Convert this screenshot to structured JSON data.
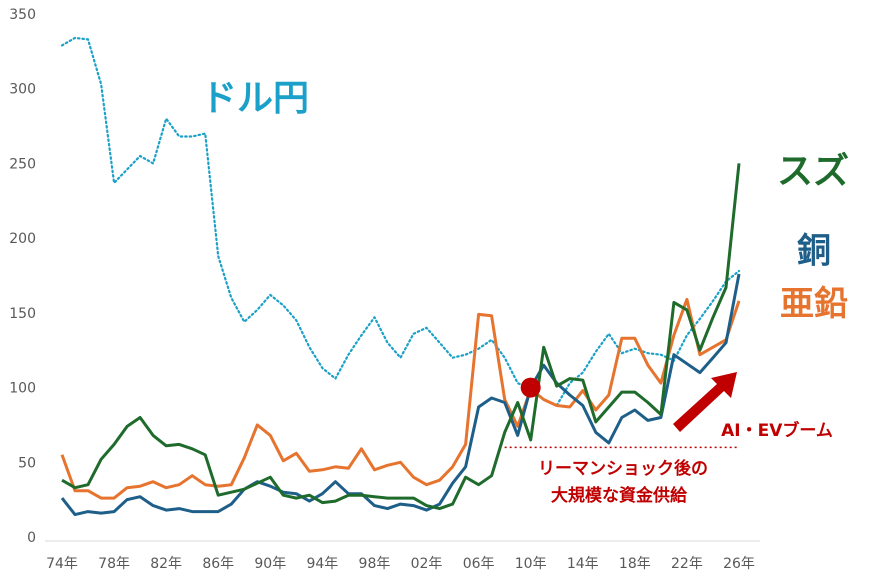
{
  "chart_data": {
    "type": "line",
    "ylim": [
      0,
      350
    ],
    "y_ticks": [
      0,
      50,
      100,
      150,
      200,
      250,
      300,
      350
    ],
    "x_start": 1974,
    "x_end": 2026,
    "x_tick_years": [
      1974,
      1978,
      1982,
      1986,
      1990,
      1994,
      1998,
      2002,
      2006,
      2010,
      2014,
      2018,
      2022,
      2026
    ],
    "x_tick_labels": [
      "74年",
      "78年",
      "82年",
      "86年",
      "90年",
      "94年",
      "98年",
      "02年",
      "06年",
      "10年",
      "14年",
      "18年",
      "22年",
      "26年"
    ],
    "grid": false,
    "series": [
      {
        "name": "ドル円",
        "color": "#1ba1c9",
        "style": "dotted",
        "x": [
          1974,
          1975,
          1976,
          1977,
          1978,
          1979,
          1980,
          1981,
          1982,
          1983,
          1984,
          1985,
          1986,
          1987,
          1988,
          1989,
          1990,
          1991,
          1992,
          1993,
          1994,
          1995,
          1996,
          1997,
          1998,
          1999,
          2000,
          2001,
          2002,
          2003,
          2004,
          2005,
          2006,
          2007,
          2008,
          2009,
          2010,
          2011,
          2012,
          2013,
          2014,
          2015,
          2016,
          2017,
          2018,
          2019,
          2020,
          2021,
          2022,
          2023,
          2024,
          2025,
          2026
        ],
        "values": [
          329,
          334,
          333,
          303,
          237,
          246,
          255,
          250,
          280,
          268,
          268,
          270,
          188,
          160,
          144,
          152,
          162,
          155,
          145,
          127,
          113,
          106,
          122,
          135,
          147,
          130,
          120,
          136,
          140,
          130,
          120,
          122,
          126,
          132,
          120,
          103,
          99,
          92,
          88,
          103,
          110,
          124,
          136,
          123,
          126,
          123,
          122,
          118,
          135,
          146,
          158,
          171,
          178
        ]
      },
      {
        "name": "スズ",
        "color": "#1e6b2c",
        "style": "solid",
        "x": [
          1974,
          1975,
          1976,
          1977,
          1978,
          1979,
          1980,
          1981,
          1982,
          1983,
          1984,
          1985,
          1986,
          1987,
          1988,
          1989,
          1990,
          1991,
          1992,
          1993,
          1994,
          1995,
          1996,
          1997,
          1998,
          1999,
          2000,
          2001,
          2002,
          2003,
          2004,
          2005,
          2006,
          2007,
          2008,
          2009,
          2010,
          2011,
          2012,
          2013,
          2014,
          2015,
          2016,
          2017,
          2018,
          2019,
          2020,
          2021,
          2022,
          2023,
          2024,
          2025,
          2026
        ],
        "values": [
          38,
          33,
          35,
          52,
          62,
          74,
          80,
          68,
          61,
          62,
          59,
          55,
          28,
          30,
          32,
          36,
          40,
          28,
          26,
          28,
          23,
          24,
          28,
          28,
          27,
          26,
          26,
          26,
          21,
          19,
          22,
          40,
          35,
          41,
          70,
          90,
          65,
          127,
          101,
          106,
          105,
          77,
          87,
          97,
          97,
          90,
          82,
          157,
          152,
          125,
          147,
          167,
          250
        ]
      },
      {
        "name": "銅",
        "color": "#1e5f8a",
        "style": "solid",
        "x": [
          1974,
          1975,
          1976,
          1977,
          1978,
          1979,
          1980,
          1981,
          1982,
          1983,
          1984,
          1985,
          1986,
          1987,
          1988,
          1989,
          1990,
          1991,
          1992,
          1993,
          1994,
          1995,
          1996,
          1997,
          1998,
          1999,
          2000,
          2001,
          2002,
          2003,
          2004,
          2005,
          2006,
          2007,
          2008,
          2009,
          2010,
          2011,
          2012,
          2013,
          2014,
          2015,
          2016,
          2017,
          2018,
          2019,
          2020,
          2021,
          2022,
          2023,
          2024,
          2025,
          2026
        ],
        "values": [
          26,
          15,
          17,
          16,
          17,
          25,
          27,
          21,
          18,
          19,
          17,
          17,
          17,
          22,
          32,
          37,
          34,
          30,
          29,
          24,
          29,
          37,
          29,
          29,
          21,
          19,
          22,
          21,
          18,
          22,
          36,
          47,
          87,
          93,
          90,
          68,
          100,
          115,
          103,
          95,
          88,
          70,
          63,
          80,
          85,
          78,
          80,
          122,
          116,
          110,
          120,
          130,
          176
        ]
      },
      {
        "name": "亜鉛",
        "color": "#e6742e",
        "style": "solid",
        "x": [
          1974,
          1975,
          1976,
          1977,
          1978,
          1979,
          1980,
          1981,
          1982,
          1983,
          1984,
          1985,
          1986,
          1987,
          1988,
          1989,
          1990,
          1991,
          1992,
          1993,
          1994,
          1995,
          1996,
          1997,
          1998,
          1999,
          2000,
          2001,
          2002,
          2003,
          2004,
          2005,
          2006,
          2007,
          2008,
          2009,
          2010,
          2011,
          2012,
          2013,
          2014,
          2015,
          2016,
          2017,
          2018,
          2019,
          2020,
          2021,
          2022,
          2023,
          2024,
          2025,
          2026
        ],
        "values": [
          55,
          31,
          31,
          26,
          26,
          33,
          34,
          37,
          33,
          35,
          41,
          35,
          34,
          35,
          53,
          75,
          68,
          51,
          56,
          44,
          45,
          47,
          46,
          59,
          45,
          48,
          50,
          40,
          35,
          38,
          47,
          62,
          149,
          148,
          92,
          74,
          99,
          92,
          88,
          87,
          98,
          85,
          95,
          133,
          133,
          115,
          103,
          135,
          159,
          122,
          127,
          132,
          158
        ]
      }
    ],
    "labels": {
      "usdjpy": "ドル円",
      "tin": "スズ",
      "copper": "銅",
      "zinc": "亜鉛"
    },
    "annotations": {
      "lehman_line1": "リーマンショック後の",
      "lehman_line2": "大規模な資金供給",
      "boom": "AI・EVブーム"
    },
    "marker": {
      "year": 2010,
      "value": 100,
      "color": "#c00000"
    },
    "lehman_reference_value": 60,
    "arrow_color": "#c00000"
  }
}
